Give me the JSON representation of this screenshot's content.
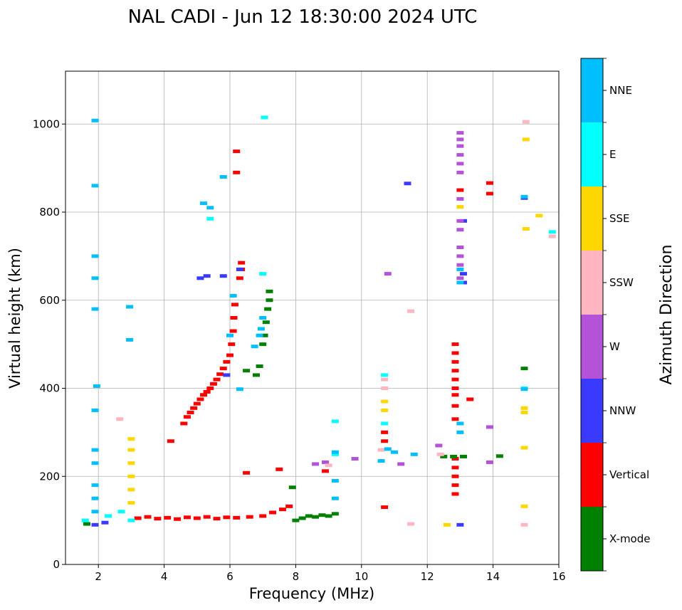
{
  "chart_data": {
    "type": "scatter",
    "title": "NAL CADI - Jun 12 18:30:00 2024 UTC",
    "xlabel": "Frequency (MHz)",
    "ylabel": "Virtual height (km)",
    "xlim": [
      1,
      16
    ],
    "ylim": [
      0,
      1120
    ],
    "xticks": [
      2,
      4,
      6,
      8,
      10,
      12,
      14,
      16
    ],
    "yticks": [
      0,
      200,
      400,
      600,
      800,
      1000
    ],
    "grid": true,
    "colorbar": {
      "label": "Azimuth Direction",
      "categories": [
        {
          "name": "X-mode",
          "color": "#008000"
        },
        {
          "name": "Vertical",
          "color": "#ff0000"
        },
        {
          "name": "NNW",
          "color": "#3a3aff"
        },
        {
          "name": "W",
          "color": "#b452d8"
        },
        {
          "name": "SSW",
          "color": "#ffb6c1"
        },
        {
          "name": "SSE",
          "color": "#ffd700"
        },
        {
          "name": "E",
          "color": "#00ffff"
        },
        {
          "name": "NNE",
          "color": "#00bfff"
        }
      ]
    },
    "series": [
      {
        "name": "Vertical",
        "points": [
          [
            3.2,
            105
          ],
          [
            3.5,
            108
          ],
          [
            3.8,
            104
          ],
          [
            4.1,
            106
          ],
          [
            4.4,
            103
          ],
          [
            4.7,
            107
          ],
          [
            5.0,
            105
          ],
          [
            5.3,
            108
          ],
          [
            5.6,
            104
          ],
          [
            5.9,
            107
          ],
          [
            6.2,
            106
          ],
          [
            6.6,
            108
          ],
          [
            7.0,
            110
          ],
          [
            7.3,
            118
          ],
          [
            7.6,
            125
          ],
          [
            7.8,
            132
          ],
          [
            8.9,
            212
          ],
          [
            4.6,
            320
          ],
          [
            4.7,
            335
          ],
          [
            4.8,
            345
          ],
          [
            4.9,
            355
          ],
          [
            5.0,
            365
          ],
          [
            5.1,
            375
          ],
          [
            5.2,
            385
          ],
          [
            5.3,
            392
          ],
          [
            5.4,
            400
          ],
          [
            5.5,
            410
          ],
          [
            5.6,
            420
          ],
          [
            5.7,
            432
          ],
          [
            5.8,
            445
          ],
          [
            5.9,
            460
          ],
          [
            6.0,
            475
          ],
          [
            6.05,
            500
          ],
          [
            6.1,
            530
          ],
          [
            6.12,
            560
          ],
          [
            6.15,
            590
          ],
          [
            6.3,
            650
          ],
          [
            6.35,
            670
          ],
          [
            6.35,
            685
          ],
          [
            4.2,
            280
          ],
          [
            6.2,
            890
          ],
          [
            6.2,
            938
          ],
          [
            6.5,
            208
          ],
          [
            7.5,
            216
          ],
          [
            10.7,
            130
          ],
          [
            10.7,
            280
          ],
          [
            10.7,
            300
          ],
          [
            12.85,
            160
          ],
          [
            12.85,
            180
          ],
          [
            12.85,
            200
          ],
          [
            12.85,
            220
          ],
          [
            12.85,
            240
          ],
          [
            12.85,
            330
          ],
          [
            12.85,
            360
          ],
          [
            12.85,
            385
          ],
          [
            12.85,
            400
          ],
          [
            12.85,
            420
          ],
          [
            12.85,
            440
          ],
          [
            12.85,
            460
          ],
          [
            12.85,
            480
          ],
          [
            12.85,
            500
          ],
          [
            13.0,
            850
          ],
          [
            13.3,
            375
          ],
          [
            13.9,
            842
          ],
          [
            13.9,
            866
          ]
        ]
      },
      {
        "name": "X-mode",
        "points": [
          [
            1.65,
            92
          ],
          [
            6.8,
            430
          ],
          [
            6.9,
            450
          ],
          [
            7.0,
            500
          ],
          [
            7.05,
            520
          ],
          [
            7.1,
            550
          ],
          [
            7.15,
            580
          ],
          [
            7.2,
            600
          ],
          [
            7.2,
            620
          ],
          [
            6.5,
            440
          ],
          [
            8.0,
            100
          ],
          [
            8.2,
            105
          ],
          [
            8.4,
            110
          ],
          [
            8.6,
            108
          ],
          [
            8.8,
            112
          ],
          [
            9.0,
            110
          ],
          [
            9.2,
            115
          ],
          [
            7.9,
            175
          ],
          [
            12.5,
            245
          ],
          [
            12.8,
            245
          ],
          [
            13.1,
            245
          ],
          [
            14.2,
            246
          ],
          [
            14.95,
            445
          ]
        ]
      },
      {
        "name": "NNW",
        "points": [
          [
            1.9,
            90
          ],
          [
            2.2,
            95
          ],
          [
            5.1,
            650
          ],
          [
            5.3,
            655
          ],
          [
            5.8,
            655
          ],
          [
            6.3,
            670
          ],
          [
            5.9,
            430
          ],
          [
            11.4,
            865
          ],
          [
            13.0,
            90
          ],
          [
            13.1,
            640
          ],
          [
            13.1,
            660
          ],
          [
            13.1,
            780
          ],
          [
            14.95,
            832
          ]
        ]
      },
      {
        "name": "W",
        "points": [
          [
            8.6,
            228
          ],
          [
            8.9,
            232
          ],
          [
            9.8,
            240
          ],
          [
            10.8,
            660
          ],
          [
            11.2,
            228
          ],
          [
            12.35,
            270
          ],
          [
            13.0,
            650
          ],
          [
            13.0,
            680
          ],
          [
            13.0,
            700
          ],
          [
            13.0,
            720
          ],
          [
            13.0,
            760
          ],
          [
            13.0,
            780
          ],
          [
            13.0,
            830
          ],
          [
            13.0,
            890
          ],
          [
            13.0,
            910
          ],
          [
            13.0,
            930
          ],
          [
            13.0,
            950
          ],
          [
            13.0,
            965
          ],
          [
            13.0,
            980
          ],
          [
            13.9,
            312
          ],
          [
            13.9,
            232
          ]
        ]
      },
      {
        "name": "SSW",
        "points": [
          [
            2.65,
            330
          ],
          [
            11.5,
            92
          ],
          [
            11.5,
            575
          ],
          [
            14.95,
            90
          ],
          [
            15.0,
            1005
          ],
          [
            15.8,
            745
          ],
          [
            9.0,
            225
          ],
          [
            10.6,
            260
          ],
          [
            10.7,
            400
          ],
          [
            10.7,
            420
          ],
          [
            12.4,
            250
          ]
        ]
      },
      {
        "name": "SSE",
        "points": [
          [
            3.0,
            140
          ],
          [
            3.0,
            170
          ],
          [
            3.0,
            200
          ],
          [
            3.0,
            230
          ],
          [
            3.0,
            260
          ],
          [
            3.0,
            285
          ],
          [
            12.6,
            90
          ],
          [
            10.7,
            350
          ],
          [
            10.7,
            370
          ],
          [
            14.95,
            132
          ],
          [
            14.95,
            265
          ],
          [
            14.95,
            345
          ],
          [
            14.95,
            355
          ],
          [
            15.0,
            762
          ],
          [
            15.0,
            965
          ],
          [
            15.4,
            792
          ],
          [
            13.0,
            812
          ]
        ]
      },
      {
        "name": "E",
        "points": [
          [
            1.6,
            100
          ],
          [
            2.3,
            110
          ],
          [
            2.7,
            120
          ],
          [
            3.0,
            100
          ],
          [
            5.4,
            785
          ],
          [
            7.0,
            660
          ],
          [
            7.05,
            1015
          ],
          [
            9.2,
            325
          ],
          [
            9.2,
            250
          ],
          [
            10.7,
            320
          ],
          [
            10.7,
            430
          ],
          [
            15.8,
            755
          ],
          [
            14.95,
            400
          ]
        ]
      },
      {
        "name": "NNE",
        "points": [
          [
            1.9,
            120
          ],
          [
            1.9,
            150
          ],
          [
            1.9,
            180
          ],
          [
            1.9,
            230
          ],
          [
            1.9,
            260
          ],
          [
            1.9,
            350
          ],
          [
            1.9,
            1008
          ],
          [
            1.9,
            860
          ],
          [
            1.9,
            700
          ],
          [
            1.9,
            650
          ],
          [
            1.9,
            580
          ],
          [
            1.95,
            405
          ],
          [
            2.95,
            510
          ],
          [
            2.95,
            585
          ],
          [
            5.2,
            820
          ],
          [
            5.4,
            810
          ],
          [
            5.8,
            880
          ],
          [
            6.0,
            520
          ],
          [
            6.1,
            610
          ],
          [
            6.3,
            398
          ],
          [
            6.75,
            495
          ],
          [
            6.9,
            520
          ],
          [
            6.95,
            535
          ],
          [
            7.0,
            560
          ],
          [
            9.2,
            150
          ],
          [
            9.2,
            190
          ],
          [
            9.2,
            255
          ],
          [
            10.6,
            235
          ],
          [
            10.8,
            262
          ],
          [
            11.0,
            255
          ],
          [
            11.6,
            250
          ],
          [
            13.0,
            300
          ],
          [
            13.0,
            320
          ],
          [
            13.0,
            640
          ],
          [
            13.0,
            670
          ],
          [
            14.95,
            835
          ],
          [
            14.95,
            398
          ]
        ]
      }
    ]
  }
}
